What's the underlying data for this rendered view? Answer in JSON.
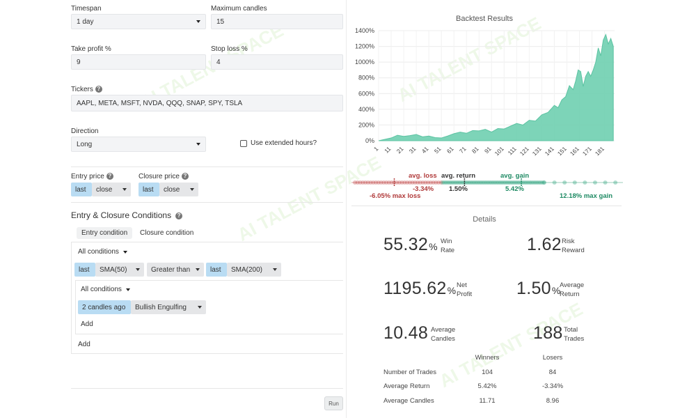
{
  "form": {
    "timespan_label": "Timespan",
    "timespan_value": "1 day",
    "max_candles_label": "Maximum candles",
    "max_candles_value": "15",
    "take_profit_label": "Take profit %",
    "take_profit_value": "9",
    "stop_loss_label": "Stop loss %",
    "stop_loss_value": "4",
    "tickers_label": "Tickers",
    "tickers_value": "AAPL, META, MSFT, NVDA, QQQ, SNAP, SPY, TSLA",
    "direction_label": "Direction",
    "direction_value": "Long",
    "extended_hours_label": "Use extended hours?",
    "entry_price_label": "Entry price",
    "entry_price_tag": "last",
    "entry_price_value": "close",
    "closure_price_label": "Closure price",
    "closure_price_tag": "last",
    "closure_price_value": "close"
  },
  "conditions": {
    "title": "Entry & Closure Conditions",
    "tab_entry": "Entry condition",
    "tab_closure": "Closure condition",
    "outer_all": "All conditions",
    "row1": {
      "tag1": "last",
      "ind1": "SMA(50)",
      "op": "Greater than",
      "tag2": "last",
      "ind2": "SMA(200)"
    },
    "inner_all": "All conditions",
    "row2": {
      "tag": "2 candles ago",
      "pattern": "Bullish Engulfing"
    },
    "inner_add": "Add",
    "outer_add": "Add",
    "run_label": "Run"
  },
  "results": {
    "title": "Backtest Results",
    "details_title": "Details",
    "dist": {
      "avg_loss_label": "avg. loss",
      "avg_loss_value": "-3.34%",
      "avg_return_label": "avg. return",
      "avg_return_value": "1.50%",
      "avg_gain_label": "avg. gain",
      "avg_gain_value": "5.42%",
      "max_loss_label": "-6.05% max loss",
      "max_gain_label": "12.18% max gain",
      "min": -6.05,
      "max": 12.18,
      "avg_loss": -3.34,
      "avg_return": 1.5,
      "avg_gain": 5.42
    },
    "stats": {
      "win_rate_value": "55.32",
      "win_rate_l1": "Win",
      "win_rate_l2": "Rate",
      "risk_reward_value": "1.62",
      "risk_reward_l1": "Risk",
      "risk_reward_l2": "Reward",
      "net_profit_value": "1195.62",
      "net_profit_l1": "Net",
      "net_profit_l2": "Profit",
      "avg_return_value": "1.50",
      "avg_return_l1": "Average",
      "avg_return_l2": "Return",
      "avg_candles_value": "10.48",
      "avg_candles_l1": "Average",
      "avg_candles_l2": "Candles",
      "total_trades_value": "188",
      "total_trades_l1": "Total",
      "total_trades_l2": "Trades",
      "pct": "%"
    },
    "table": {
      "headers": [
        "",
        "Winners",
        "Losers"
      ],
      "rows": [
        [
          "Number of Trades",
          "104",
          "84"
        ],
        [
          "Average Return",
          "5.42%",
          "-3.34%"
        ],
        [
          "Average Candles",
          "11.71",
          "8.96"
        ]
      ]
    }
  },
  "watermark": "AI TALENT SPACE",
  "colors": {
    "area": "#6fcfb0",
    "accent_blue": "#b9dcf3",
    "loss": "#c0392b",
    "gain": "#1e9a6e"
  },
  "icons": {
    "help": "question-circle-icon",
    "dropdown": "caret-down-icon"
  },
  "chart_data": {
    "type": "area",
    "title": "Backtest Results",
    "xlabel": "",
    "ylabel": "",
    "ylim": [
      0,
      1400
    ],
    "yticks": [
      "0%",
      "200%",
      "400%",
      "600%",
      "800%",
      "1000%",
      "1200%",
      "1400%"
    ],
    "xticks": [
      "1",
      "11",
      "21",
      "31",
      "41",
      "51",
      "61",
      "71",
      "81",
      "91",
      "101",
      "111",
      "121",
      "131",
      "141",
      "151",
      "161",
      "171",
      "181"
    ],
    "x": [
      1,
      6,
      11,
      16,
      21,
      26,
      31,
      36,
      41,
      46,
      51,
      56,
      61,
      66,
      71,
      76,
      81,
      86,
      91,
      96,
      101,
      106,
      111,
      116,
      121,
      126,
      131,
      136,
      141,
      144,
      147,
      150,
      153,
      156,
      158,
      160,
      162,
      164,
      166,
      168,
      170,
      172,
      174,
      176,
      178,
      180,
      182,
      184,
      186,
      188
    ],
    "values": [
      0,
      18,
      35,
      70,
      55,
      65,
      80,
      50,
      60,
      40,
      35,
      60,
      90,
      110,
      95,
      130,
      125,
      145,
      110,
      155,
      150,
      185,
      220,
      200,
      260,
      250,
      330,
      360,
      450,
      420,
      520,
      560,
      700,
      650,
      760,
      900,
      880,
      690,
      820,
      880,
      820,
      900,
      1000,
      1180,
      1080,
      1280,
      1350,
      1230,
      1300,
      1200
    ],
    "grid": true,
    "legend": "none"
  }
}
